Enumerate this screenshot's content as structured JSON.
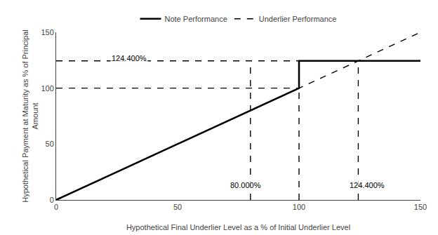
{
  "chart_data": {
    "type": "line",
    "title": "",
    "xlabel": "Hypothetical Final Underlier Level as a % of Initial Underlier Level",
    "ylabel": "Hypothetical Payment at Maturity as % of Principal\nAmount",
    "series": [
      {
        "name": "Note Performance",
        "color": "#000000",
        "line_style": "solid",
        "x": [
          0,
          100,
          100,
          150
        ],
        "values": [
          0,
          100,
          124.4,
          124.4
        ]
      },
      {
        "name": "Underlier Performance",
        "color": "#000000",
        "line_style": "dashed",
        "x": [
          0,
          150,
          null,
          0,
          150,
          null,
          0,
          100,
          null,
          80.0,
          80.0,
          null,
          100,
          100,
          null,
          124.4,
          124.4
        ],
        "values": [
          124.4,
          124.4,
          null,
          0,
          150,
          null,
          100,
          100,
          null,
          0,
          124.4,
          null,
          0,
          100,
          null,
          0,
          124.4
        ]
      }
    ],
    "annotations": [
      {
        "x": 30,
        "y": 127,
        "text": "124.400%"
      },
      {
        "x": 78,
        "y": 13,
        "text": "80.000%"
      },
      {
        "x": 128,
        "y": 13,
        "text": "124.400%"
      }
    ],
    "xlim": [
      0,
      150
    ],
    "ylim": [
      0,
      150
    ],
    "xticks": [
      0,
      50,
      100,
      150
    ],
    "yticks": [
      0,
      50,
      100,
      150
    ],
    "grid": false,
    "legend": "upper center"
  }
}
